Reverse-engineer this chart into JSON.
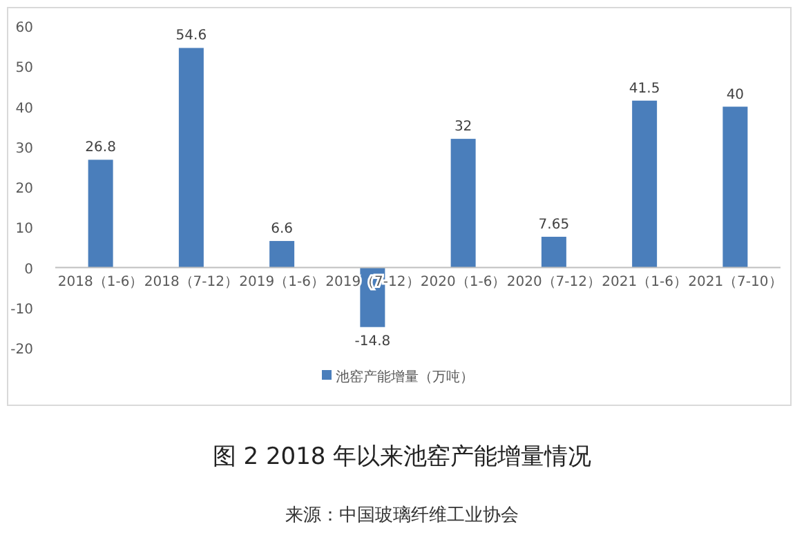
{
  "chart_data": {
    "type": "bar",
    "title": "图 2 2018 年以来池窑产能增量情况",
    "annotations": [
      "来源：中国玻璃纤维工业协会"
    ],
    "categories": [
      "2018（1-6）",
      "2018（7-12）",
      "2019（1-6）",
      "2019（7-12）",
      "2020（1-6）",
      "2020（7-12）",
      "2021（1-6）",
      "2021（7-10）"
    ],
    "series": [
      {
        "name": "池窑产能增量（万吨）",
        "color": "#4a7ebb",
        "values": [
          26.8,
          54.6,
          6.6,
          -14.8,
          32,
          7.65,
          41.5,
          40
        ]
      }
    ],
    "ylim": [
      -20,
      60
    ],
    "yticks": [
      -20,
      -10,
      0,
      10,
      20,
      30,
      40,
      50,
      60
    ],
    "data_labels": true,
    "legend": "bottom"
  }
}
